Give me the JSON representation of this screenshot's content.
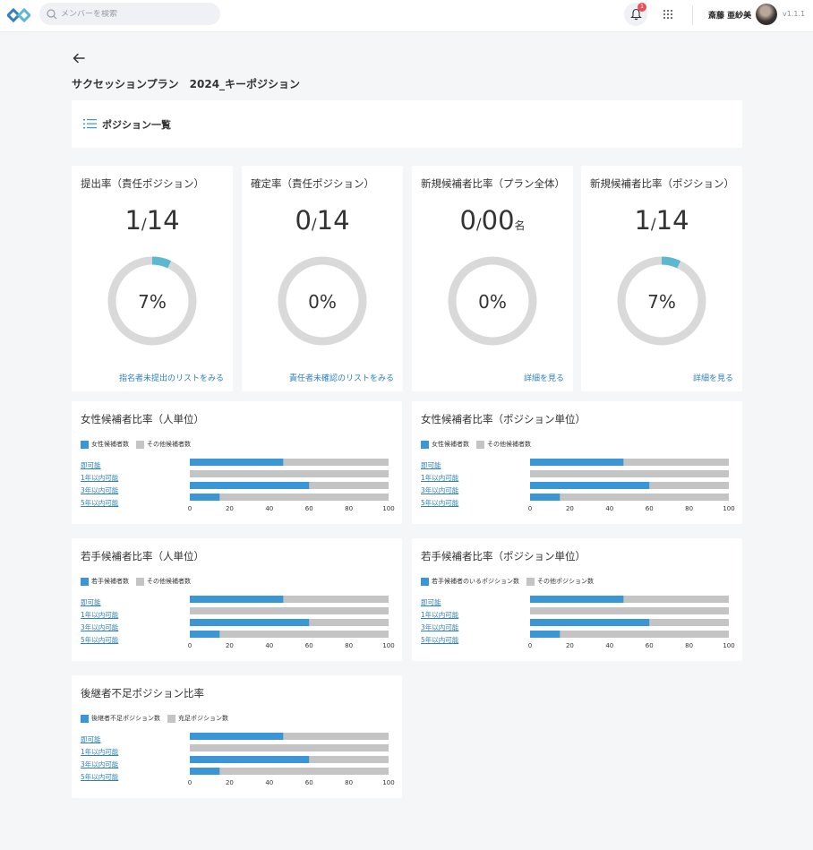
{
  "header": {
    "search_placeholder": "メンバーを検索",
    "notification_count": "1",
    "user_name": "斎藤 亜紗美",
    "version": "v1.1.1"
  },
  "page": {
    "title": "サクセッションプラン　2024_キーポジション",
    "position_list_label": "ポジション一覧"
  },
  "colors": {
    "accent": "#3a96d4",
    "donut_track": "#d9d9d9",
    "donut_fill": "#5bb8d0",
    "other_bar": "#c4c4c4",
    "link": "#2d7fbf"
  },
  "kpis": [
    {
      "title": "提出率（責任ポジション）",
      "num": "1",
      "den": "14",
      "unit": "",
      "percent_label": "7%",
      "percent": 7,
      "link": "指名者未提出のリストをみる"
    },
    {
      "title": "確定率（責任ポジション）",
      "num": "0",
      "den": "14",
      "unit": "",
      "percent_label": "0%",
      "percent": 0,
      "link": "責任者未確認のリストをみる"
    },
    {
      "title": "新規候補者比率（プラン全体）",
      "num": "0",
      "den": "00",
      "unit": "名",
      "percent_label": "0%",
      "percent": 0,
      "link": "詳細を見る"
    },
    {
      "title": "新規候補者比率（ポジション）",
      "num": "1",
      "den": "14",
      "unit": "",
      "percent_label": "7%",
      "percent": 7,
      "link": "詳細を見る"
    }
  ],
  "bar_charts": [
    {
      "title": "女性候補者比率（人単位）",
      "legend": [
        "女性候補者数",
        "その他候補者数"
      ]
    },
    {
      "title": "女性候補者比率（ポジション単位）",
      "legend": [
        "女性候補者数",
        "その他候補者数"
      ]
    },
    {
      "title": "若手候補者比率（人単位）",
      "legend": [
        "若手候補者数",
        "その他候補者数"
      ]
    },
    {
      "title": "若手候補者比率（ポジション単位）",
      "legend": [
        "若手候補者のいるポジション数",
        "その他ポジション数"
      ]
    },
    {
      "title": "後継者不足ポジション比率",
      "legend": [
        "後継者不足ポジション数",
        "充足ポジション数"
      ]
    }
  ],
  "chart_data": {
    "type": "bar",
    "orientation": "horizontal",
    "stacked": true,
    "categories": [
      "即可能",
      "1年以内可能",
      "3年以内可能",
      "5年以内可能"
    ],
    "values": [
      47,
      0,
      60,
      15
    ],
    "total": 100,
    "xlim": [
      0,
      100
    ],
    "xticks": [
      0,
      20,
      40,
      60,
      80,
      100
    ],
    "grid": false,
    "legend_position": "top-left"
  }
}
